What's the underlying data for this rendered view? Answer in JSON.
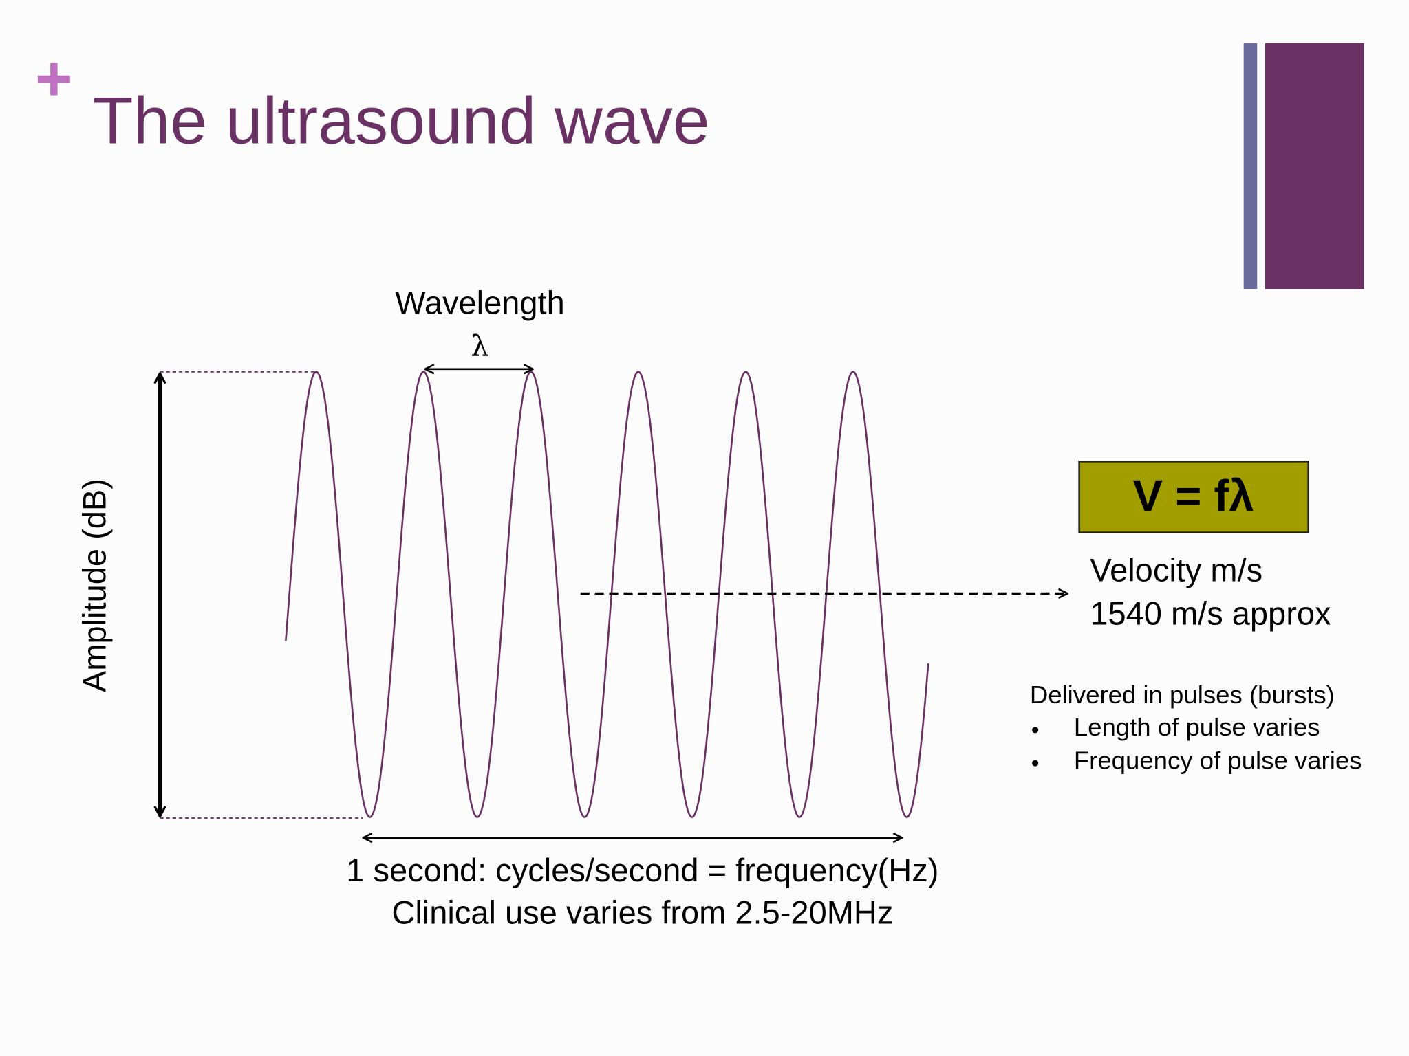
{
  "title": "The ultrasound wave",
  "diagram": {
    "wavelength_label": "Wavelength",
    "wavelength_symbol": "λ",
    "amplitude_label": "Amplitude (dB)",
    "frequency_lines": [
      "1 second: cycles/second = frequency(Hz)",
      "Clinical use varies from 2.5-20MHz"
    ],
    "formula": "V = fλ",
    "velocity_lines": [
      "Velocity m/s",
      "1540 m/s approx"
    ],
    "pulses": {
      "heading": "Delivered in pulses (bursts)",
      "items": [
        "Length of pulse varies",
        "Frequency of pulse varies"
      ]
    }
  }
}
